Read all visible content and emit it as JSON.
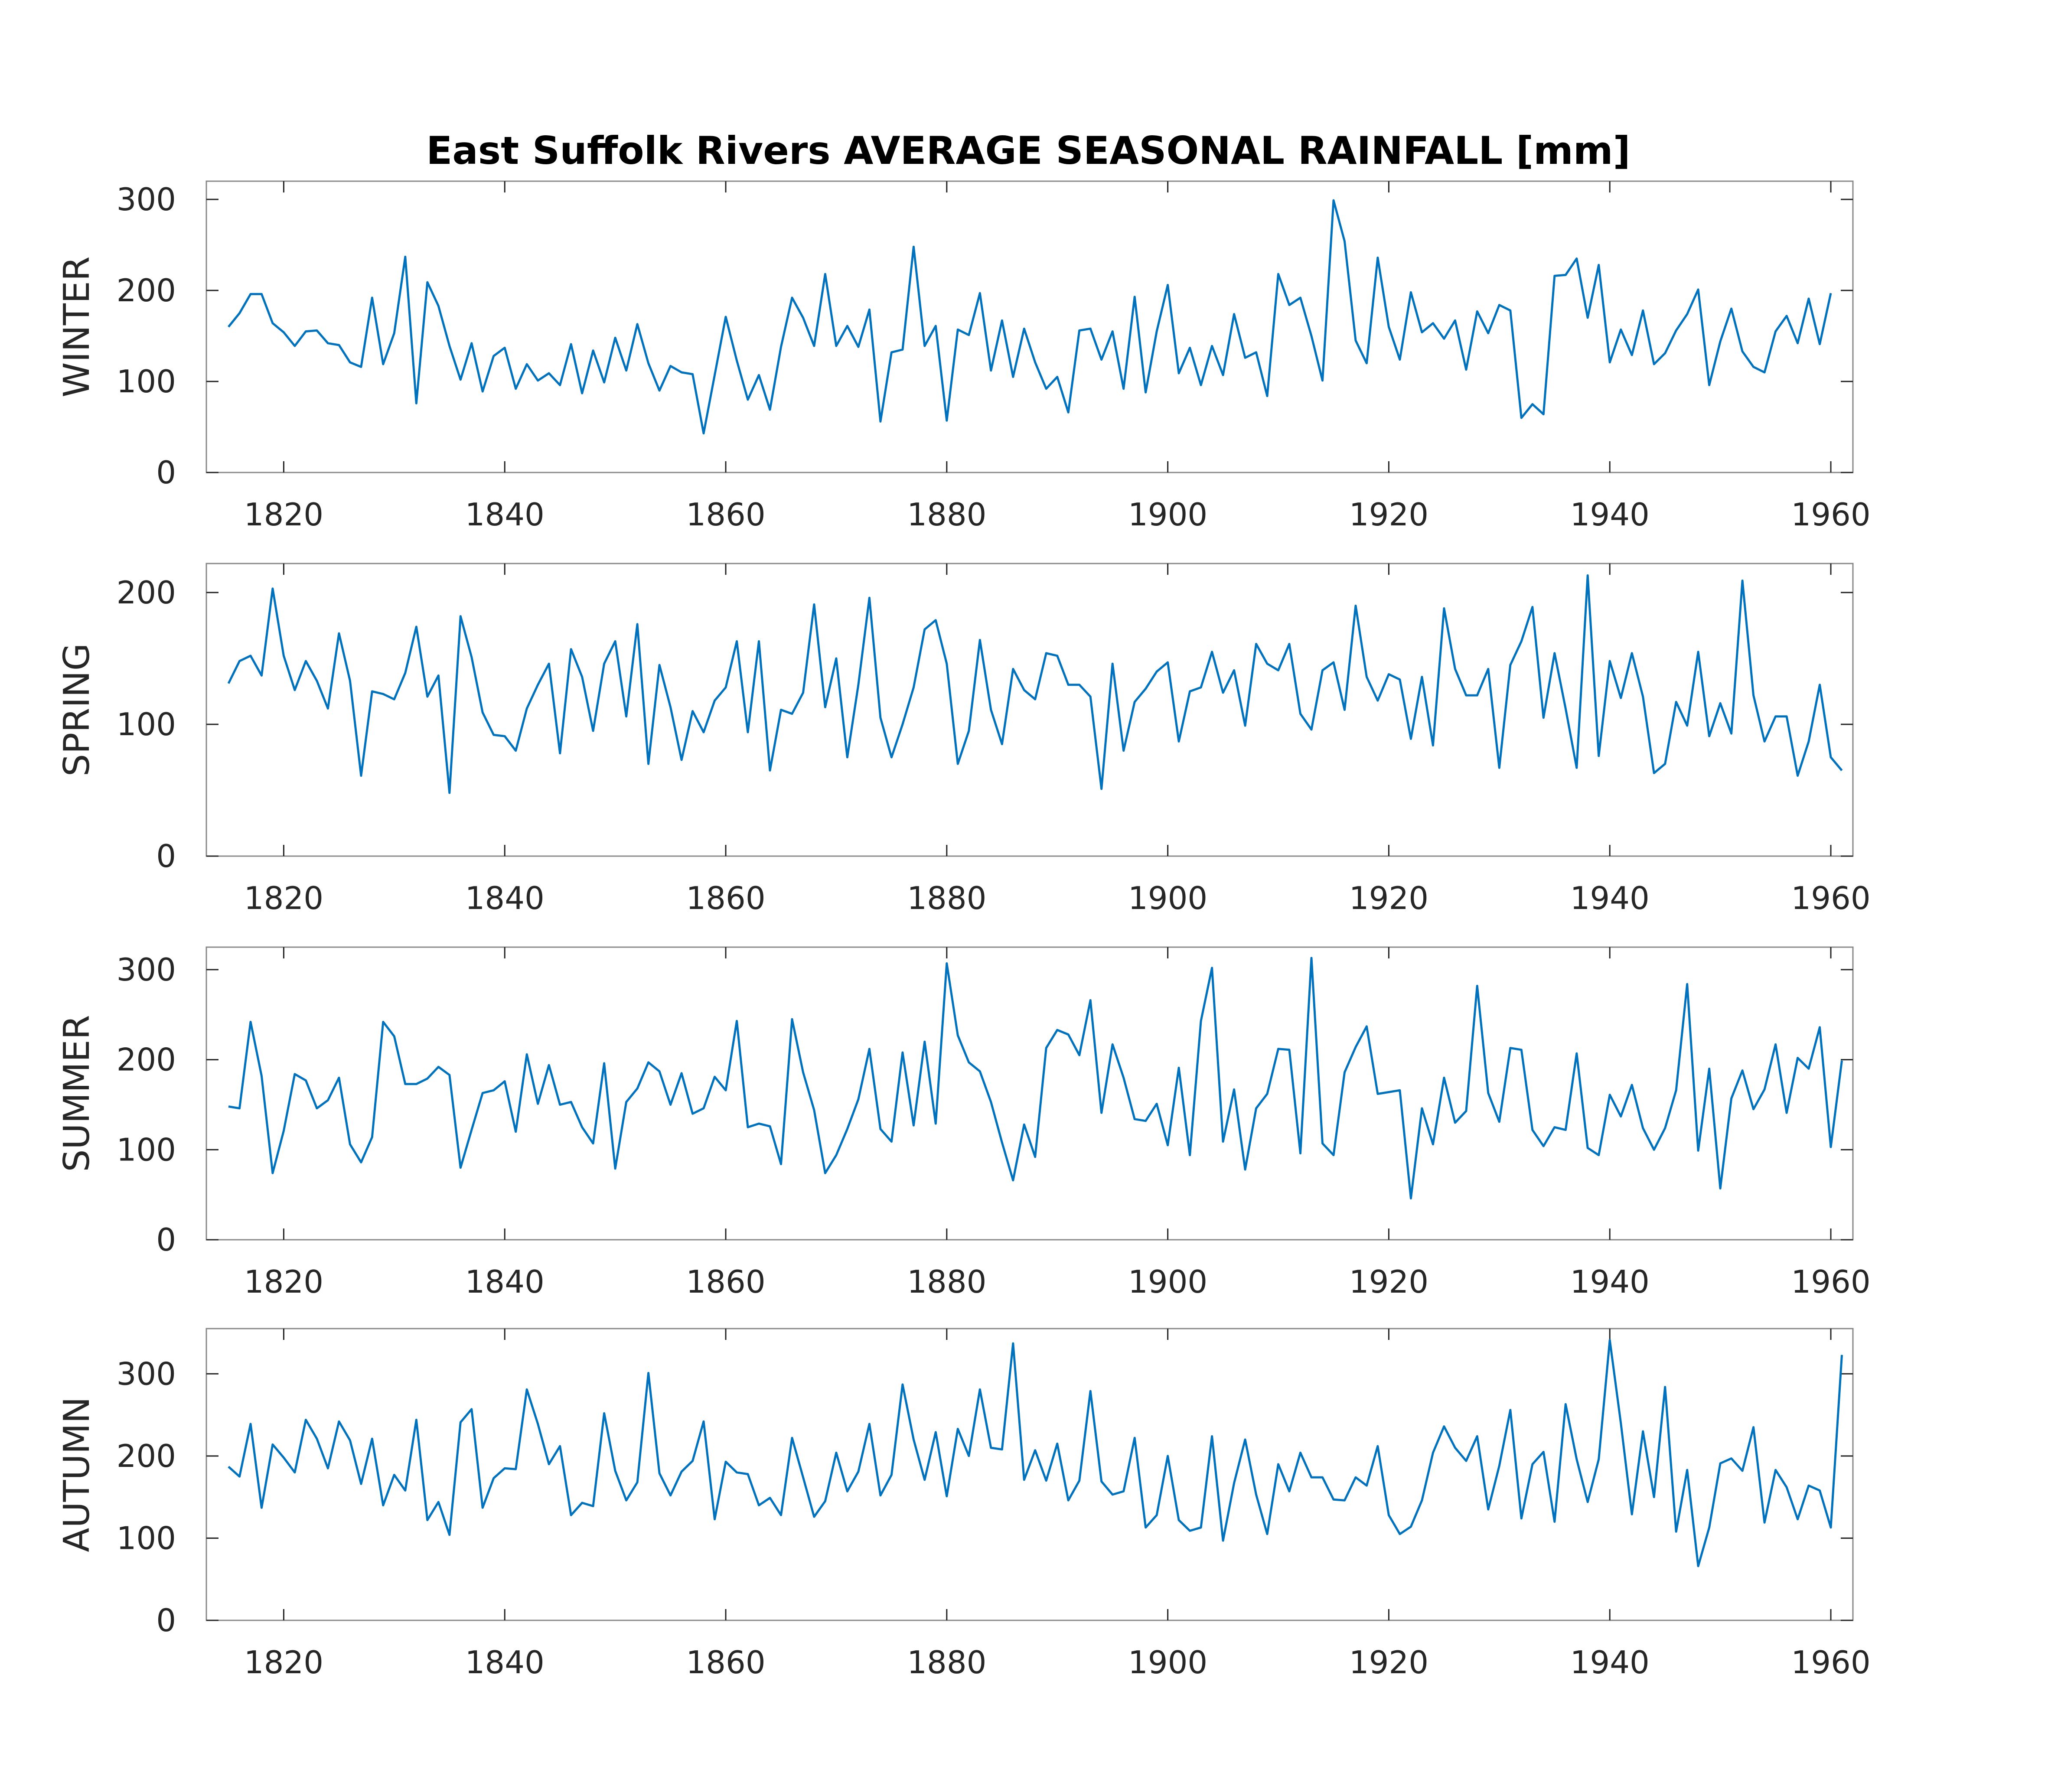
{
  "colors": {
    "line": "#0072BD",
    "axes": "#262626"
  },
  "chart_data": {
    "type": "line",
    "title": "East Suffolk Rivers AVERAGE SEASONAL RAINFALL [mm]",
    "grid": false,
    "xlim": [
      1813,
      1962
    ],
    "x_start": 1815,
    "x_step": 1,
    "x_ticks": [
      1820,
      1840,
      1860,
      1880,
      1900,
      1920,
      1940,
      1960
    ],
    "panels": [
      {
        "ylabel": "WINTER",
        "ylim": [
          0,
          320
        ],
        "y_ticks": [
          0,
          100,
          200,
          300
        ],
        "values": [
          160,
          175,
          196,
          196,
          164,
          154,
          139,
          155,
          156,
          142,
          140,
          121,
          116,
          192,
          119,
          153,
          237,
          76,
          209,
          183,
          139,
          102,
          142,
          89,
          128,
          137,
          92,
          119,
          101,
          109,
          96,
          141,
          87,
          134,
          99,
          148,
          112,
          163,
          120,
          90,
          117,
          110,
          108,
          43,
          107,
          171,
          123,
          80,
          107,
          69,
          138,
          192,
          170,
          139,
          218,
          139,
          161,
          138,
          179,
          56,
          132,
          135,
          248,
          139,
          161,
          57,
          157,
          151,
          197,
          112,
          167,
          105,
          158,
          121,
          92,
          105,
          66,
          156,
          158,
          124,
          155,
          92,
          193,
          88,
          155,
          206,
          109,
          137,
          96,
          139,
          107,
          174,
          126,
          132,
          84,
          218,
          184,
          192,
          150,
          101,
          299,
          254,
          145,
          120,
          236,
          160,
          124,
          198,
          154,
          164,
          147,
          167,
          113,
          177,
          153,
          184,
          178,
          60,
          75,
          64,
          216,
          217,
          235,
          170,
          228,
          121,
          157,
          129,
          178,
          119,
          131,
          156,
          174,
          201,
          96,
          144,
          180,
          133,
          116,
          110,
          155,
          172,
          142,
          191,
          141,
          197
        ]
      },
      {
        "ylabel": "SPRING",
        "ylim": [
          0,
          222
        ],
        "y_ticks": [
          0,
          100,
          200
        ],
        "values": [
          131,
          148,
          152,
          137,
          203,
          152,
          126,
          148,
          133,
          112,
          169,
          133,
          61,
          125,
          123,
          119,
          139,
          174,
          121,
          137,
          48,
          182,
          151,
          109,
          92,
          91,
          80,
          112,
          130,
          146,
          78,
          157,
          136,
          95,
          146,
          163,
          106,
          176,
          70,
          145,
          113,
          73,
          110,
          94,
          118,
          128,
          163,
          94,
          163,
          65,
          111,
          108,
          124,
          191,
          113,
          150,
          75,
          130,
          196,
          105,
          75,
          100,
          128,
          172,
          179,
          146,
          70,
          95,
          164,
          111,
          85,
          142,
          126,
          119,
          154,
          152,
          130,
          130,
          121,
          51,
          146,
          80,
          117,
          127,
          140,
          147,
          87,
          125,
          128,
          155,
          124,
          141,
          99,
          161,
          146,
          141,
          161,
          108,
          96,
          141,
          147,
          111,
          190,
          136,
          118,
          138,
          134,
          89,
          136,
          84,
          188,
          142,
          122,
          122,
          142,
          67,
          145,
          163,
          189,
          105,
          154,
          112,
          67,
          213,
          76,
          148,
          120,
          154,
          121,
          63,
          70,
          117,
          99,
          155,
          91,
          116,
          93,
          209,
          122,
          87,
          106,
          106,
          61,
          87,
          130,
          75,
          65
        ]
      },
      {
        "ylabel": "SUMMER",
        "ylim": [
          0,
          325
        ],
        "y_ticks": [
          0,
          100,
          200,
          300
        ],
        "values": [
          148,
          146,
          242,
          182,
          74,
          121,
          184,
          177,
          146,
          155,
          180,
          106,
          86,
          114,
          242,
          226,
          173,
          173,
          179,
          192,
          183,
          80,
          122,
          163,
          166,
          176,
          120,
          206,
          151,
          194,
          150,
          153,
          125,
          107,
          196,
          79,
          153,
          168,
          197,
          187,
          150,
          185,
          140,
          146,
          181,
          166,
          243,
          125,
          129,
          126,
          84,
          245,
          186,
          144,
          74,
          94,
          123,
          156,
          212,
          123,
          109,
          208,
          127,
          220,
          129,
          307,
          227,
          197,
          187,
          153,
          108,
          66,
          128,
          92,
          213,
          233,
          228,
          205,
          266,
          141,
          217,
          180,
          134,
          132,
          151,
          105,
          191,
          94,
          243,
          302,
          109,
          167,
          78,
          146,
          162,
          212,
          211,
          96,
          313,
          107,
          94,
          186,
          214,
          237,
          162,
          164,
          166,
          46,
          146,
          106,
          180,
          130,
          143,
          282,
          163,
          131,
          213,
          211,
          122,
          104,
          125,
          122,
          207,
          102,
          94,
          161,
          137,
          172,
          124,
          100,
          124,
          166,
          284,
          99,
          190,
          57,
          157,
          188,
          145,
          167,
          217,
          141,
          202,
          190,
          236,
          103,
          199
        ]
      },
      {
        "ylabel": "AUTUMN",
        "ylim": [
          0,
          355
        ],
        "y_ticks": [
          0,
          100,
          200,
          300
        ],
        "values": [
          187,
          175,
          239,
          137,
          214,
          198,
          180,
          244,
          221,
          185,
          242,
          219,
          166,
          221,
          140,
          177,
          158,
          244,
          122,
          144,
          104,
          241,
          257,
          137,
          173,
          185,
          184,
          281,
          239,
          190,
          212,
          128,
          143,
          139,
          252,
          182,
          146,
          168,
          301,
          179,
          152,
          181,
          194,
          242,
          123,
          193,
          180,
          178,
          140,
          149,
          128,
          222,
          174,
          126,
          145,
          204,
          157,
          181,
          239,
          152,
          177,
          287,
          220,
          171,
          229,
          151,
          233,
          200,
          281,
          210,
          208,
          337,
          171,
          207,
          170,
          215,
          146,
          170,
          279,
          169,
          153,
          157,
          222,
          113,
          128,
          200,
          122,
          109,
          113,
          224,
          97,
          167,
          220,
          153,
          105,
          190,
          157,
          204,
          174,
          174,
          147,
          146,
          174,
          164,
          212,
          128,
          105,
          114,
          146,
          204,
          236,
          210,
          194,
          224,
          135,
          188,
          256,
          124,
          190,
          205,
          120,
          263,
          196,
          144,
          196,
          341,
          240,
          129,
          230,
          150,
          284,
          108,
          183,
          66,
          113,
          191,
          197,
          182,
          235,
          119,
          183,
          162,
          123,
          164,
          158,
          113,
          323
        ]
      }
    ]
  }
}
